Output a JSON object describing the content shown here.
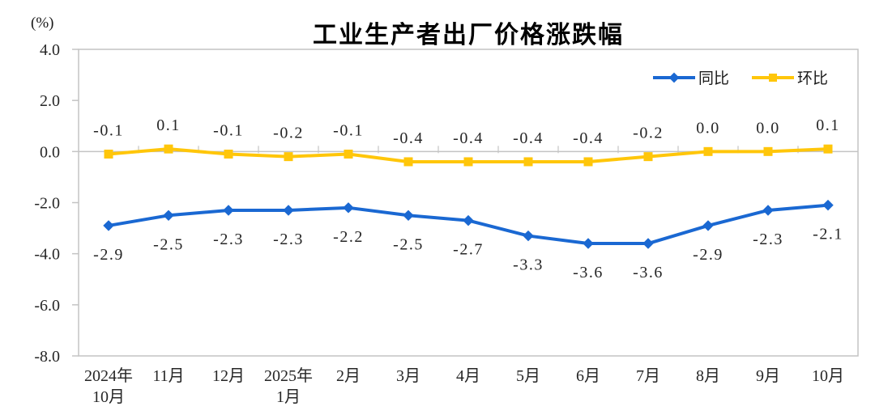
{
  "chart_data": {
    "type": "line",
    "title": "工业生产者出厂价格涨跌幅",
    "unit_label": "(%)",
    "categories": [
      [
        "2024年",
        "10月"
      ],
      [
        "11月"
      ],
      [
        "12月"
      ],
      [
        "2025年",
        "1月"
      ],
      [
        "2月"
      ],
      [
        "3月"
      ],
      [
        "4月"
      ],
      [
        "5月"
      ],
      [
        "6月"
      ],
      [
        "7月"
      ],
      [
        "8月"
      ],
      [
        "9月"
      ],
      [
        "10月"
      ]
    ],
    "series": [
      {
        "name": "同比",
        "color": "#1A68D2",
        "marker": "diamond",
        "label_side": "below",
        "values": [
          -2.9,
          -2.5,
          -2.3,
          -2.3,
          -2.2,
          -2.5,
          -2.7,
          -3.3,
          -3.6,
          -3.6,
          -2.9,
          -2.3,
          -2.1
        ]
      },
      {
        "name": "环比",
        "color": "#FFC60A",
        "marker": "square",
        "label_side": "above",
        "values": [
          -0.1,
          0.1,
          -0.1,
          -0.2,
          -0.1,
          -0.4,
          -0.4,
          -0.4,
          -0.4,
          -0.2,
          0.0,
          0.0,
          0.1
        ]
      }
    ],
    "ylim": [
      -8,
      4
    ],
    "y_step": 2,
    "grid": false,
    "legend_position": "top-right",
    "axis_color": "#C4C4C4",
    "label_color": "#262626"
  }
}
